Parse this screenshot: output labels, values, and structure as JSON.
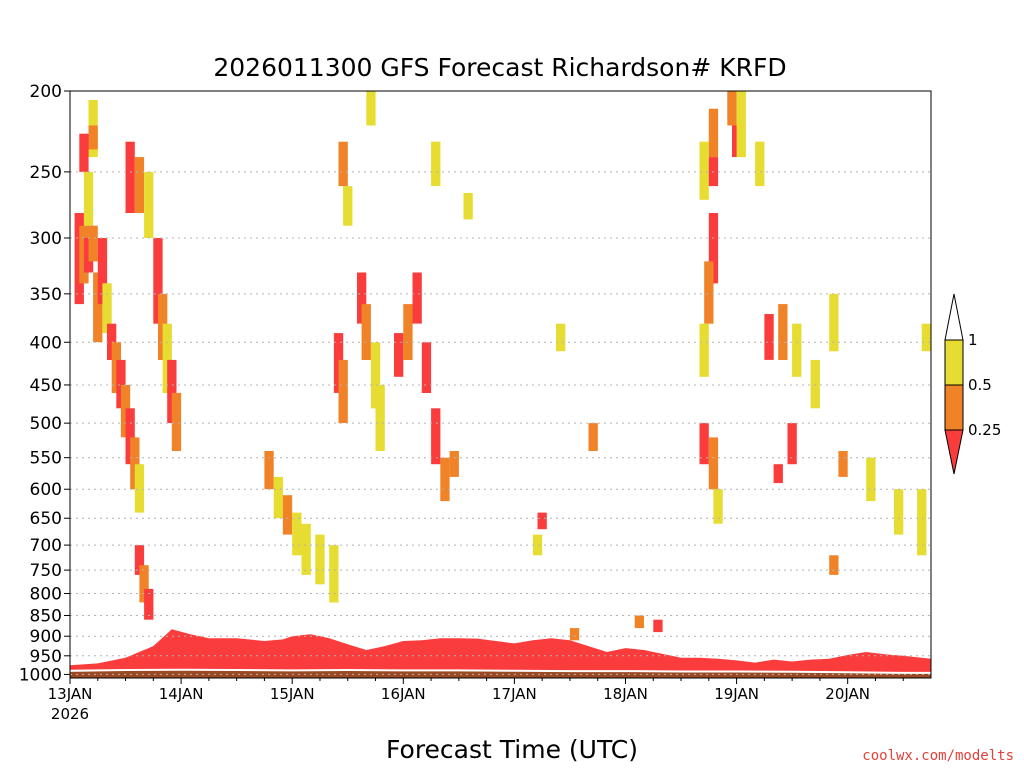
{
  "chart_data": {
    "type": "heatmap",
    "title": "2026011300 GFS Forecast Richardson# KRFD",
    "xlabel": "Forecast Time (UTC)",
    "ylabel": "",
    "credit": "coolwx.com/modelts",
    "x_ticks": [
      {
        "value": 0,
        "label": "13JAN",
        "sublabel": "2026"
      },
      {
        "value": 24,
        "label": "14JAN"
      },
      {
        "value": 48,
        "label": "15JAN"
      },
      {
        "value": 72,
        "label": "16JAN"
      },
      {
        "value": 96,
        "label": "17JAN"
      },
      {
        "value": 120,
        "label": "18JAN"
      },
      {
        "value": 144,
        "label": "19JAN"
      },
      {
        "value": 168,
        "label": "20JAN"
      }
    ],
    "xlim": [
      0,
      186
    ],
    "y_ticks": [
      200,
      250,
      300,
      350,
      400,
      450,
      500,
      550,
      600,
      650,
      700,
      750,
      800,
      850,
      900,
      950,
      1000
    ],
    "ylim": [
      1010,
      200
    ],
    "yscale": "log-pressure",
    "grid": true,
    "colorbar": {
      "labels": [
        "1",
        "0.5",
        "0.25"
      ],
      "bins": [
        {
          "range": "> 1",
          "color": "#ffffff"
        },
        {
          "range": "0.5-1",
          "color": "#e6dc32"
        },
        {
          "range": "0.25-0.5",
          "color": "#f08228"
        },
        {
          "range": "< 0.25",
          "color": "#fa3c3c"
        }
      ]
    },
    "colors": {
      "yellow": "#e6dc32",
      "orange": "#f08228",
      "red": "#fa3c3c",
      "ground": "#9b4a24"
    },
    "ground_pressure": [
      [
        0,
        990
      ],
      [
        12,
        988
      ],
      [
        24,
        987
      ],
      [
        36,
        988
      ],
      [
        48,
        989
      ],
      [
        60,
        988
      ],
      [
        72,
        989
      ],
      [
        84,
        989
      ],
      [
        96,
        990
      ],
      [
        108,
        991
      ],
      [
        120,
        991
      ],
      [
        132,
        992
      ],
      [
        144,
        992
      ],
      [
        156,
        993
      ],
      [
        168,
        994
      ],
      [
        180,
        996
      ],
      [
        186,
        996
      ]
    ],
    "surface_layer_top": [
      [
        0,
        975
      ],
      [
        6,
        970
      ],
      [
        12,
        955
      ],
      [
        18,
        925
      ],
      [
        22,
        883
      ],
      [
        26,
        895
      ],
      [
        30,
        905
      ],
      [
        36,
        905
      ],
      [
        42,
        912
      ],
      [
        46,
        908
      ],
      [
        48,
        900
      ],
      [
        52,
        895
      ],
      [
        56,
        905
      ],
      [
        60,
        920
      ],
      [
        64,
        935
      ],
      [
        68,
        925
      ],
      [
        72,
        912
      ],
      [
        76,
        910
      ],
      [
        80,
        905
      ],
      [
        84,
        905
      ],
      [
        88,
        906
      ],
      [
        92,
        912
      ],
      [
        96,
        918
      ],
      [
        100,
        910
      ],
      [
        104,
        905
      ],
      [
        108,
        910
      ],
      [
        112,
        925
      ],
      [
        116,
        940
      ],
      [
        120,
        930
      ],
      [
        124,
        935
      ],
      [
        128,
        945
      ],
      [
        132,
        955
      ],
      [
        136,
        955
      ],
      [
        140,
        958
      ],
      [
        144,
        962
      ],
      [
        148,
        968
      ],
      [
        152,
        960
      ],
      [
        156,
        965
      ],
      [
        160,
        960
      ],
      [
        164,
        958
      ],
      [
        168,
        948
      ],
      [
        172,
        940
      ],
      [
        176,
        946
      ],
      [
        180,
        950
      ],
      [
        186,
        958
      ]
    ],
    "cells": [
      {
        "t": 4,
        "p": [
          205,
          240
        ],
        "c": "yellow"
      },
      {
        "t": 4,
        "p": [
          220,
          235
        ],
        "c": "orange"
      },
      {
        "t": 2,
        "p": [
          225,
          250
        ],
        "c": "red"
      },
      {
        "t": 3,
        "p": [
          250,
          290
        ],
        "c": "yellow"
      },
      {
        "t": 1,
        "p": [
          280,
          360
        ],
        "c": "red"
      },
      {
        "t": 2,
        "p": [
          290,
          340
        ],
        "c": "orange"
      },
      {
        "t": 3,
        "p": [
          300,
          330
        ],
        "c": "red"
      },
      {
        "t": 4,
        "p": [
          290,
          320
        ],
        "c": "orange"
      },
      {
        "t": 5,
        "p": [
          330,
          400
        ],
        "c": "orange"
      },
      {
        "t": 6,
        "p": [
          300,
          360
        ],
        "c": "red"
      },
      {
        "t": 7,
        "p": [
          340,
          390
        ],
        "c": "yellow"
      },
      {
        "t": 8,
        "p": [
          380,
          420
        ],
        "c": "red"
      },
      {
        "t": 9,
        "p": [
          400,
          460
        ],
        "c": "orange"
      },
      {
        "t": 10,
        "p": [
          420,
          480
        ],
        "c": "red"
      },
      {
        "t": 11,
        "p": [
          450,
          520
        ],
        "c": "orange"
      },
      {
        "t": 12,
        "p": [
          480,
          560
        ],
        "c": "red"
      },
      {
        "t": 13,
        "p": [
          520,
          600
        ],
        "c": "orange"
      },
      {
        "t": 14,
        "p": [
          560,
          640
        ],
        "c": "yellow"
      },
      {
        "t": 12,
        "p": [
          230,
          280
        ],
        "c": "red"
      },
      {
        "t": 14,
        "p": [
          240,
          280
        ],
        "c": "orange"
      },
      {
        "t": 16,
        "p": [
          250,
          300
        ],
        "c": "yellow"
      },
      {
        "t": 18,
        "p": [
          300,
          380
        ],
        "c": "red"
      },
      {
        "t": 19,
        "p": [
          350,
          420
        ],
        "c": "orange"
      },
      {
        "t": 20,
        "p": [
          380,
          460
        ],
        "c": "yellow"
      },
      {
        "t": 21,
        "p": [
          420,
          500
        ],
        "c": "red"
      },
      {
        "t": 22,
        "p": [
          460,
          540
        ],
        "c": "orange"
      },
      {
        "t": 14,
        "p": [
          700,
          760
        ],
        "c": "red"
      },
      {
        "t": 15,
        "p": [
          740,
          820
        ],
        "c": "orange"
      },
      {
        "t": 16,
        "p": [
          790,
          860
        ],
        "c": "red"
      },
      {
        "t": 42,
        "p": [
          540,
          600
        ],
        "c": "orange"
      },
      {
        "t": 44,
        "p": [
          580,
          650
        ],
        "c": "yellow"
      },
      {
        "t": 46,
        "p": [
          610,
          680
        ],
        "c": "orange"
      },
      {
        "t": 48,
        "p": [
          640,
          720
        ],
        "c": "yellow"
      },
      {
        "t": 50,
        "p": [
          660,
          760
        ],
        "c": "yellow"
      },
      {
        "t": 53,
        "p": [
          680,
          780
        ],
        "c": "yellow"
      },
      {
        "t": 56,
        "p": [
          700,
          820
        ],
        "c": "yellow"
      },
      {
        "t": 58,
        "p": [
          230,
          260
        ],
        "c": "orange"
      },
      {
        "t": 59,
        "p": [
          260,
          290
        ],
        "c": "yellow"
      },
      {
        "t": 57,
        "p": [
          390,
          460
        ],
        "c": "red"
      },
      {
        "t": 58,
        "p": [
          420,
          500
        ],
        "c": "orange"
      },
      {
        "t": 62,
        "p": [
          330,
          380
        ],
        "c": "red"
      },
      {
        "t": 63,
        "p": [
          360,
          420
        ],
        "c": "orange"
      },
      {
        "t": 65,
        "p": [
          400,
          480
        ],
        "c": "yellow"
      },
      {
        "t": 66,
        "p": [
          450,
          540
        ],
        "c": "yellow"
      },
      {
        "t": 70,
        "p": [
          390,
          440
        ],
        "c": "red"
      },
      {
        "t": 72,
        "p": [
          360,
          420
        ],
        "c": "orange"
      },
      {
        "t": 74,
        "p": [
          330,
          380
        ],
        "c": "red"
      },
      {
        "t": 76,
        "p": [
          400,
          460
        ],
        "c": "red"
      },
      {
        "t": 78,
        "p": [
          480,
          560
        ],
        "c": "red"
      },
      {
        "t": 80,
        "p": [
          550,
          620
        ],
        "c": "orange"
      },
      {
        "t": 82,
        "p": [
          540,
          580
        ],
        "c": "orange"
      },
      {
        "t": 64,
        "p": [
          200,
          220
        ],
        "c": "yellow"
      },
      {
        "t": 78,
        "p": [
          230,
          260
        ],
        "c": "yellow"
      },
      {
        "t": 85,
        "p": [
          265,
          285
        ],
        "c": "yellow"
      },
      {
        "t": 101,
        "p": [
          640,
          670
        ],
        "c": "red"
      },
      {
        "t": 100,
        "p": [
          680,
          720
        ],
        "c": "yellow"
      },
      {
        "t": 108,
        "p": [
          880,
          910
        ],
        "c": "orange"
      },
      {
        "t": 112,
        "p": [
          500,
          540
        ],
        "c": "orange"
      },
      {
        "t": 105,
        "p": [
          380,
          410
        ],
        "c": "yellow"
      },
      {
        "t": 122,
        "p": [
          850,
          880
        ],
        "c": "orange"
      },
      {
        "t": 126,
        "p": [
          860,
          890
        ],
        "c": "red"
      },
      {
        "t": 136,
        "p": [
          230,
          270
        ],
        "c": "yellow"
      },
      {
        "t": 138,
        "p": [
          210,
          240
        ],
        "c": "orange"
      },
      {
        "t": 138,
        "p": [
          240,
          260
        ],
        "c": "red"
      },
      {
        "t": 138,
        "p": [
          280,
          340
        ],
        "c": "red"
      },
      {
        "t": 137,
        "p": [
          320,
          380
        ],
        "c": "orange"
      },
      {
        "t": 136,
        "p": [
          380,
          440
        ],
        "c": "yellow"
      },
      {
        "t": 136,
        "p": [
          500,
          560
        ],
        "c": "red"
      },
      {
        "t": 138,
        "p": [
          520,
          600
        ],
        "c": "orange"
      },
      {
        "t": 139,
        "p": [
          600,
          660
        ],
        "c": "yellow"
      },
      {
        "t": 142,
        "p": [
          200,
          220
        ],
        "c": "orange"
      },
      {
        "t": 143,
        "p": [
          220,
          240
        ],
        "c": "red"
      },
      {
        "t": 144,
        "p": [
          200,
          240
        ],
        "c": "yellow"
      },
      {
        "t": 148,
        "p": [
          230,
          260
        ],
        "c": "yellow"
      },
      {
        "t": 150,
        "p": [
          370,
          420
        ],
        "c": "red"
      },
      {
        "t": 153,
        "p": [
          360,
          420
        ],
        "c": "orange"
      },
      {
        "t": 155,
        "p": [
          500,
          560
        ],
        "c": "red"
      },
      {
        "t": 152,
        "p": [
          560,
          590
        ],
        "c": "red"
      },
      {
        "t": 156,
        "p": [
          380,
          440
        ],
        "c": "yellow"
      },
      {
        "t": 160,
        "p": [
          420,
          480
        ],
        "c": "yellow"
      },
      {
        "t": 164,
        "p": [
          350,
          410
        ],
        "c": "yellow"
      },
      {
        "t": 166,
        "p": [
          540,
          580
        ],
        "c": "orange"
      },
      {
        "t": 164,
        "p": [
          720,
          760
        ],
        "c": "orange"
      },
      {
        "t": 172,
        "p": [
          550,
          620
        ],
        "c": "yellow"
      },
      {
        "t": 178,
        "p": [
          600,
          680
        ],
        "c": "yellow"
      },
      {
        "t": 183,
        "p": [
          600,
          720
        ],
        "c": "yellow"
      },
      {
        "t": 184,
        "p": [
          380,
          410
        ],
        "c": "yellow"
      }
    ]
  }
}
